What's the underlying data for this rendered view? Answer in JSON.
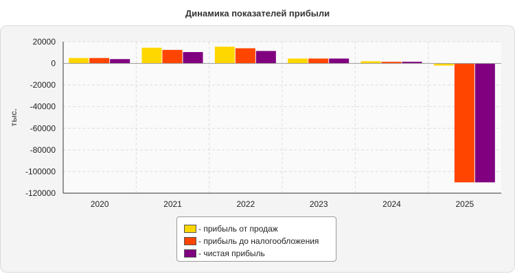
{
  "chart_data": {
    "type": "bar",
    "title": "Динамика показателей прибыли",
    "ylabel": "тыс.",
    "xlabel": "",
    "categories": [
      "2020",
      "2021",
      "2022",
      "2023",
      "2024",
      "2025"
    ],
    "ylim": [
      -120000,
      20000
    ],
    "yticks": [
      20000,
      0,
      -20000,
      -40000,
      -60000,
      -80000,
      -100000,
      -120000
    ],
    "grid": true,
    "legend_position": "bottom",
    "series": [
      {
        "name": "- прибыль от продаж",
        "color": "#FFD700",
        "values": [
          5000,
          14500,
          15500,
          4500,
          2000,
          -2000
        ]
      },
      {
        "name": "- прибыль до налогообложения",
        "color": "#FF4500",
        "values": [
          5000,
          12500,
          14000,
          4500,
          1500,
          -110000
        ]
      },
      {
        "name": "- чистая прибыль",
        "color": "#800080",
        "values": [
          4000,
          10500,
          11500,
          4500,
          1500,
          -110000
        ]
      }
    ]
  }
}
